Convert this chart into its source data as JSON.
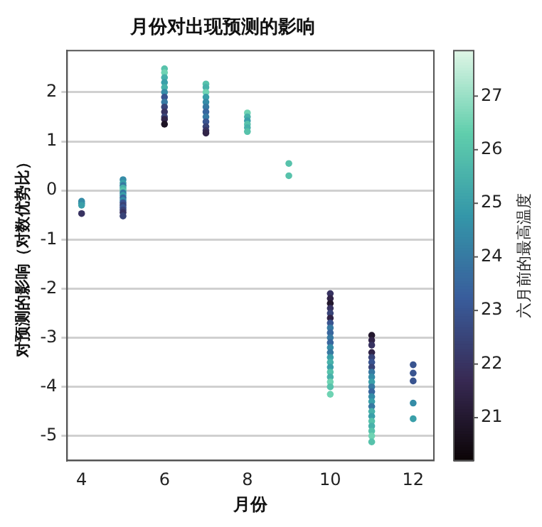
{
  "chart_data": {
    "type": "scatter",
    "title": "月份对出现预测的影响",
    "xlabel": "月份",
    "ylabel": "对预测的影响（对数优势比）",
    "clabel": "六月前的最高温度",
    "xlim": [
      3.65,
      12.5
    ],
    "xticks": [
      4,
      6,
      8,
      10,
      12
    ],
    "ylim": [
      -5.5,
      2.85
    ],
    "yticks": [
      -5,
      -4,
      -3,
      -2,
      -1,
      0,
      1,
      2
    ],
    "clim": [
      20.2,
      27.85
    ],
    "cticks": [
      21,
      22,
      23,
      24,
      25,
      26,
      27
    ],
    "grid": "y",
    "legend": false,
    "marker": "circle",
    "series": [
      {
        "x": [
          4,
          4,
          4,
          4,
          5,
          5,
          5,
          5,
          5,
          5,
          5,
          5,
          5,
          5,
          5,
          5,
          5,
          5,
          5,
          6,
          6,
          6,
          6,
          6,
          6,
          6,
          6,
          6,
          6,
          6,
          6,
          6,
          7,
          7,
          7,
          7,
          7,
          7,
          7,
          7,
          7,
          7,
          7,
          7,
          8,
          8,
          8,
          8,
          8,
          8,
          9,
          9,
          10,
          10,
          10,
          10,
          10,
          10,
          10,
          10,
          10,
          10,
          10,
          10,
          10,
          10,
          10,
          10,
          10,
          10,
          10,
          10,
          10,
          11,
          11,
          11,
          11,
          11,
          11,
          11,
          11,
          11,
          11,
          11,
          11,
          11,
          11,
          11,
          11,
          11,
          11,
          11,
          11,
          11,
          11,
          12,
          12,
          12,
          12,
          12
        ],
        "values": [
          -0.22,
          -0.26,
          -0.3,
          -0.47,
          0.22,
          0.15,
          0.1,
          0.05,
          0.0,
          -0.05,
          -0.1,
          -0.15,
          -0.2,
          -0.25,
          -0.3,
          -0.35,
          -0.4,
          -0.45,
          -0.52,
          2.48,
          2.4,
          2.3,
          2.2,
          2.1,
          2.0,
          1.9,
          1.8,
          1.7,
          1.6,
          1.5,
          1.45,
          1.35,
          2.17,
          2.1,
          2.0,
          1.9,
          1.8,
          1.7,
          1.6,
          1.5,
          1.4,
          1.3,
          1.22,
          1.17,
          1.58,
          1.5,
          1.42,
          1.35,
          1.28,
          1.2,
          0.55,
          0.3,
          -2.1,
          -2.2,
          -2.3,
          -2.4,
          -2.5,
          -2.6,
          -2.7,
          -2.8,
          -2.9,
          -3.0,
          -3.1,
          -3.2,
          -3.3,
          -3.4,
          -3.5,
          -3.6,
          -3.7,
          -3.8,
          -3.9,
          -4.0,
          -4.15,
          -2.95,
          -3.05,
          -3.15,
          -3.3,
          -3.4,
          -3.5,
          -3.6,
          -3.7,
          -3.8,
          -3.9,
          -4.0,
          -4.1,
          -4.2,
          -4.3,
          -4.4,
          -4.5,
          -4.6,
          -4.7,
          -4.8,
          -4.9,
          -5.0,
          -5.12,
          -3.55,
          -3.72,
          -3.88,
          -4.33,
          -4.65
        ],
        "cvalues": [
          24.5,
          24.5,
          25,
          22,
          24.5,
          25,
          24,
          25.5,
          26,
          24,
          25,
          23.5,
          24.5,
          23,
          22.5,
          23,
          22.5,
          22,
          22.5,
          26,
          26.5,
          25.5,
          25,
          25.5,
          24.5,
          23,
          24,
          22.5,
          22,
          22.5,
          21.5,
          20.8,
          26,
          25.5,
          26.5,
          25,
          24.5,
          24,
          23.5,
          24,
          23,
          22.5,
          22,
          21.5,
          26.5,
          25.5,
          25,
          26,
          25.5,
          26,
          26,
          26,
          22,
          21.5,
          21,
          22,
          22.5,
          21.5,
          23,
          24,
          23.5,
          24,
          23.5,
          24.5,
          24,
          25,
          25.5,
          25,
          26,
          25.5,
          26.5,
          26,
          26.5,
          21,
          21.5,
          22,
          21.5,
          22.5,
          23,
          22.5,
          24,
          24.5,
          25,
          24,
          23.5,
          24.5,
          25,
          24,
          25.5,
          25,
          26,
          25.5,
          26,
          26.5,
          26,
          23,
          23,
          23,
          24.5,
          25
        ]
      }
    ]
  }
}
